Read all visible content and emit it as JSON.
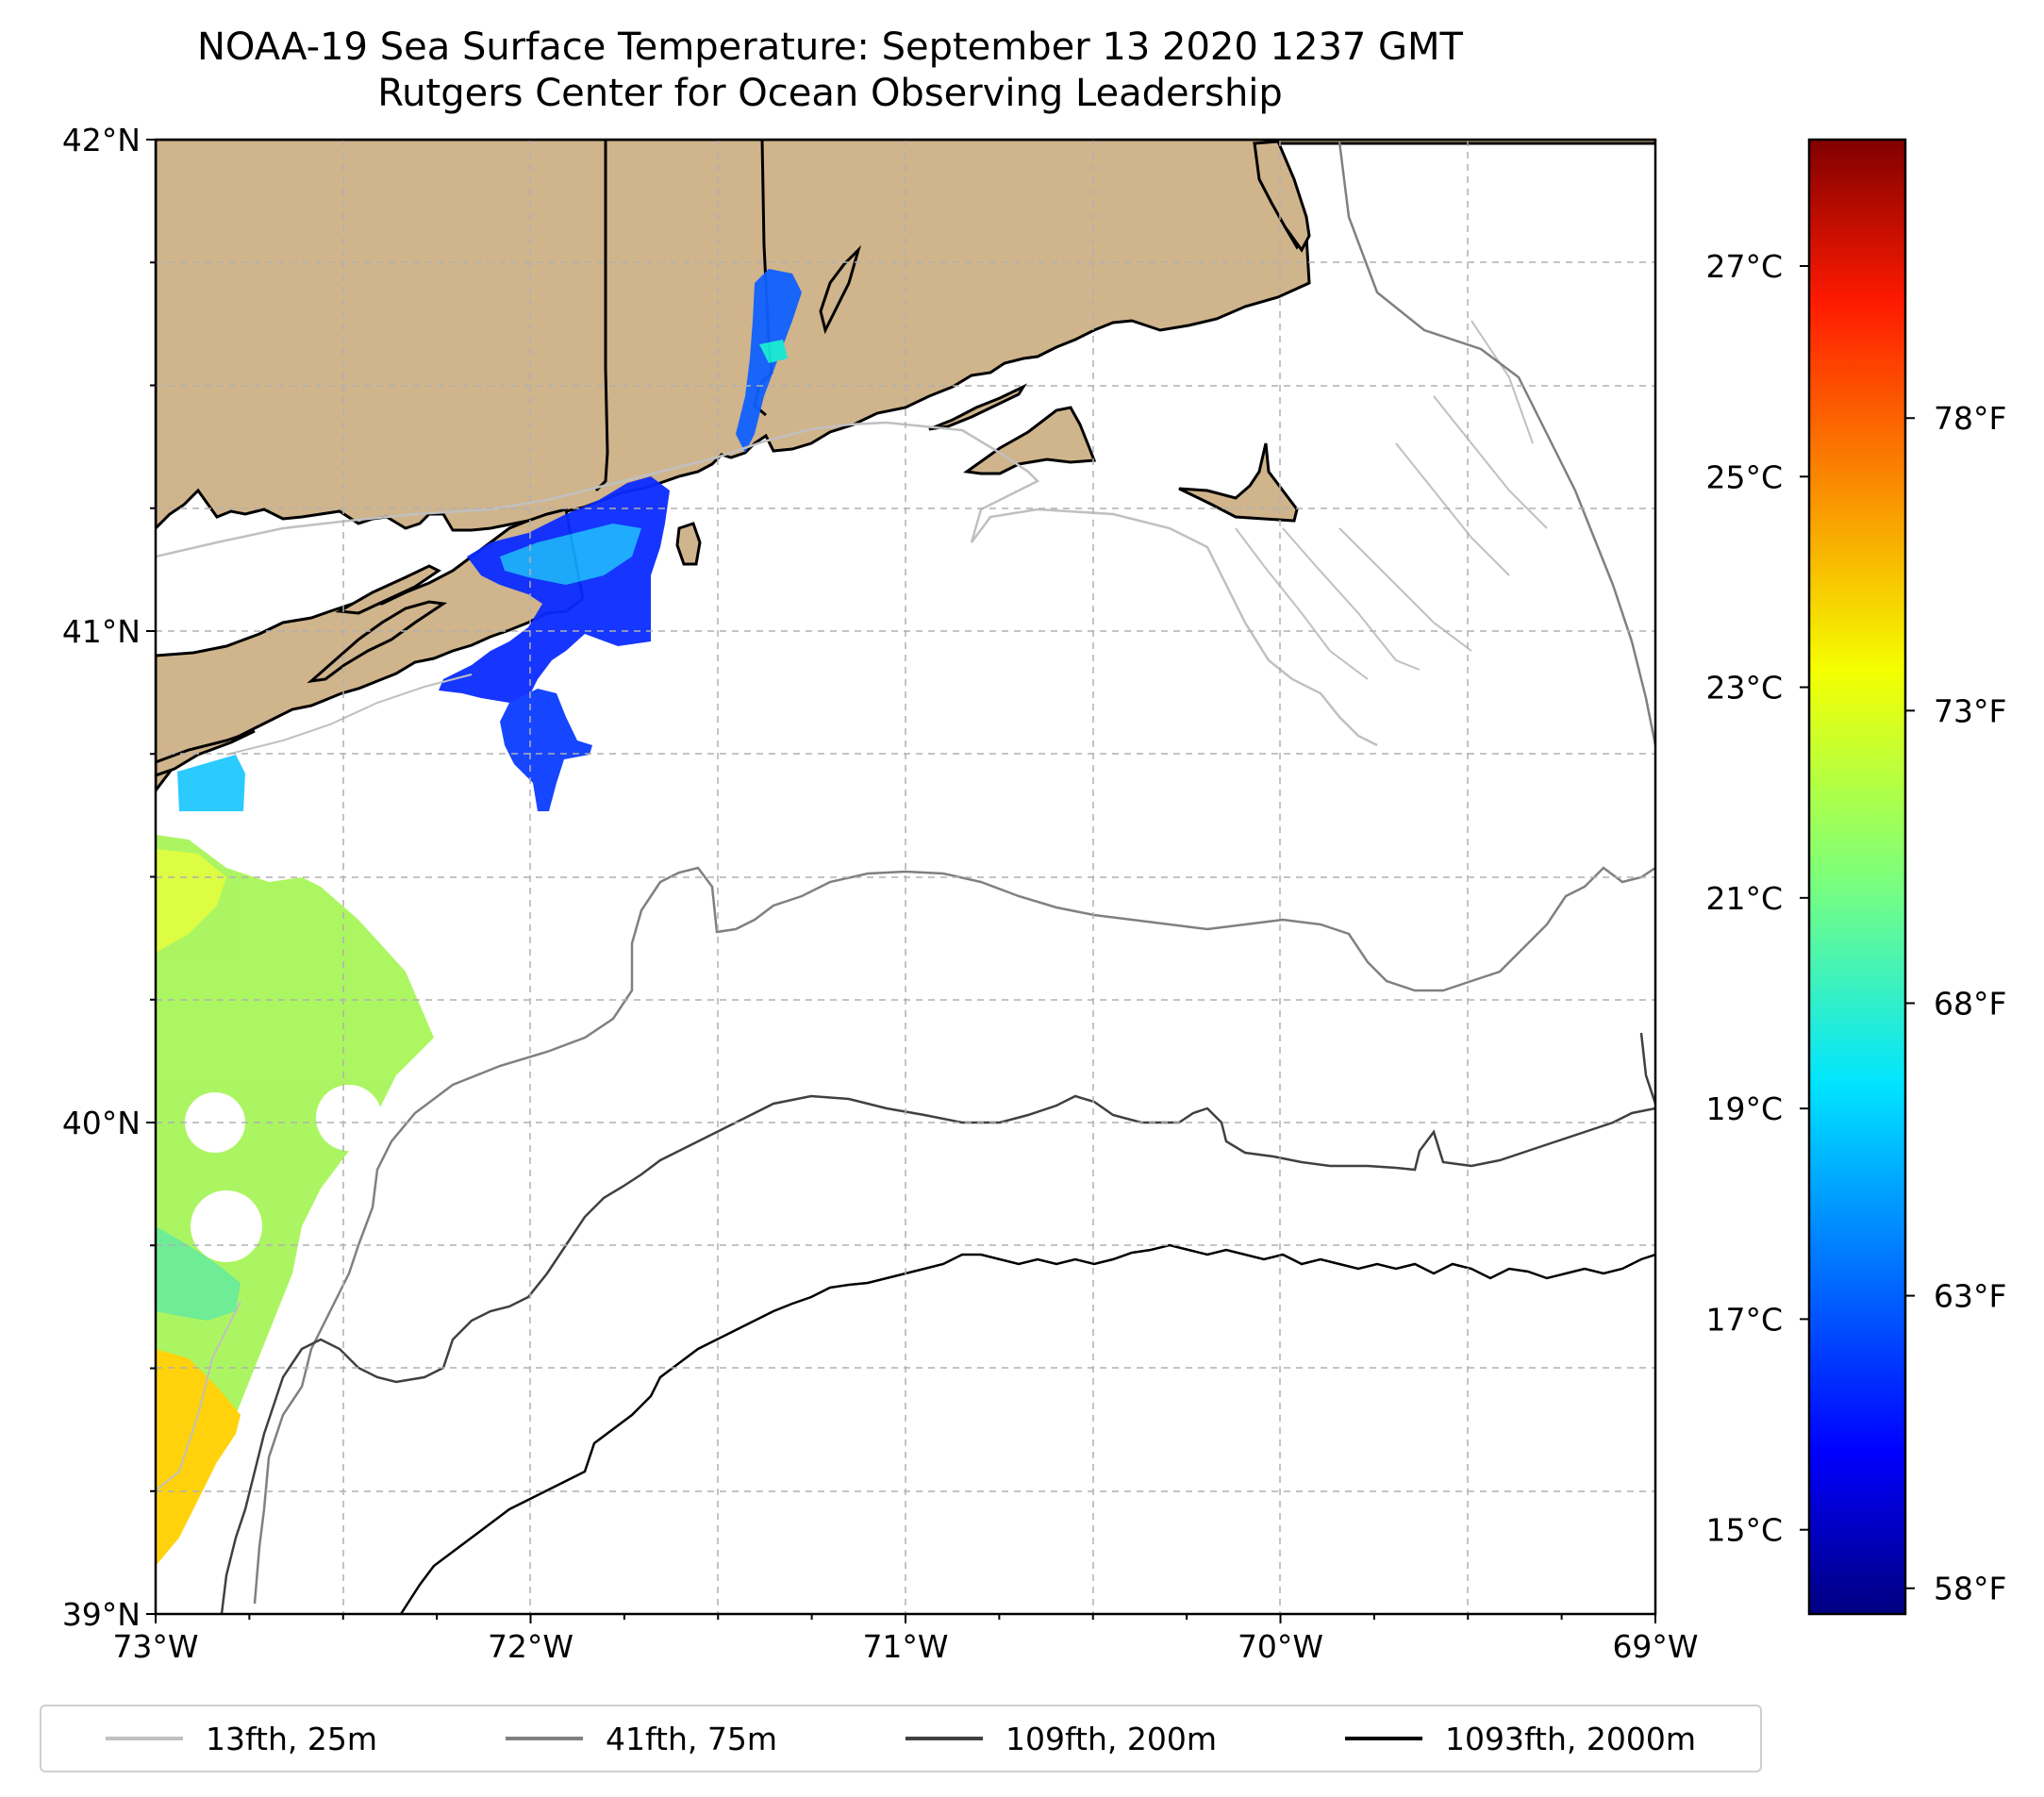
{
  "title": {
    "line1": "NOAA-19 Sea Surface Temperature: September 13 2020 1237 GMT",
    "line2": "Rutgers Center for Ocean Observing Leadership"
  },
  "map": {
    "lon_range": [
      -73,
      -69
    ],
    "lat_range": [
      39,
      42
    ],
    "lon_ticks": [
      {
        "value": -73,
        "label": "73°W"
      },
      {
        "value": -72,
        "label": "72°W"
      },
      {
        "value": -71,
        "label": "71°W"
      },
      {
        "value": -70,
        "label": "70°W"
      },
      {
        "value": -69,
        "label": "69°W"
      }
    ],
    "lat_ticks": [
      {
        "value": 42,
        "label": "42°N"
      },
      {
        "value": 41,
        "label": "41°N"
      },
      {
        "value": 40,
        "label": "40°N"
      },
      {
        "value": 39,
        "label": "39°N"
      }
    ],
    "gridlines": true,
    "land_color": "#d0b48c"
  },
  "colorbar": {
    "colormap": "jet",
    "range_c": [
      14.2,
      28.2
    ],
    "celsius_ticks": [
      {
        "value": 15,
        "label": "15°C"
      },
      {
        "value": 17,
        "label": "17°C"
      },
      {
        "value": 19,
        "label": "19°C"
      },
      {
        "value": 21,
        "label": "21°C"
      },
      {
        "value": 23,
        "label": "23°C"
      },
      {
        "value": 25,
        "label": "25°C"
      },
      {
        "value": 27,
        "label": "27°C"
      }
    ],
    "fahrenheit_ticks": [
      {
        "value": 58,
        "label": "58°F"
      },
      {
        "value": 63,
        "label": "63°F"
      },
      {
        "value": 68,
        "label": "68°F"
      },
      {
        "value": 73,
        "label": "73°F"
      },
      {
        "value": 78,
        "label": "78°F"
      }
    ]
  },
  "legend": {
    "items": [
      {
        "label": "13fth, 25m",
        "color": "#c0c0c0"
      },
      {
        "label": "41fth, 75m",
        "color": "#808080"
      },
      {
        "label": "109fth, 200m",
        "color": "#404040"
      },
      {
        "label": "1093fth, 2000m",
        "color": "#000000"
      }
    ]
  }
}
